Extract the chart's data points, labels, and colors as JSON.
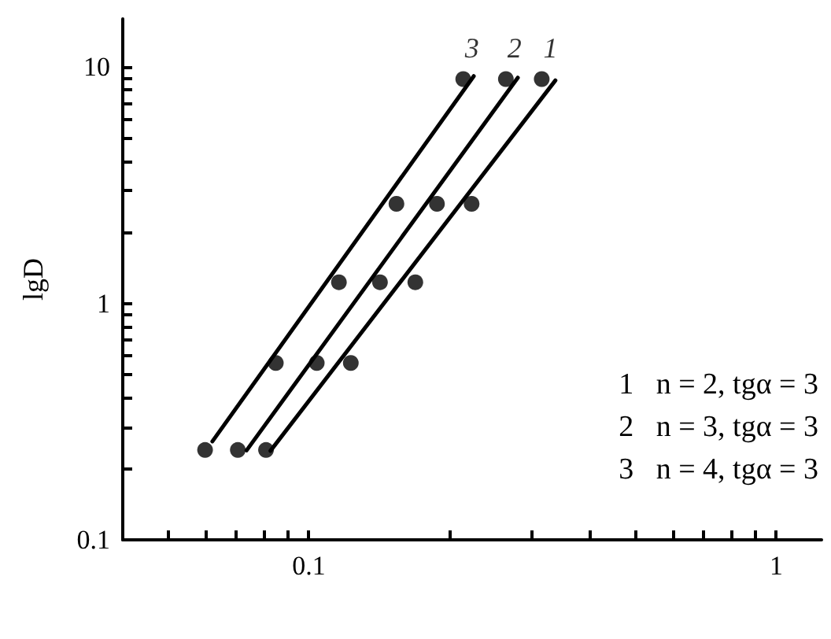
{
  "chart_data": {
    "type": "scatter",
    "ylabel": "lgD",
    "log": "xy",
    "xlim": [
      0.04,
      1.25
    ],
    "ylim": [
      0.1,
      16
    ],
    "xticks": [
      {
        "value": 0.05,
        "label": null
      },
      {
        "value": 0.06,
        "label": null
      },
      {
        "value": 0.07,
        "label": null
      },
      {
        "value": 0.08,
        "label": null
      },
      {
        "value": 0.09,
        "label": null
      },
      0.1,
      {
        "value": 0.2,
        "label": null
      },
      {
        "value": 0.3,
        "label": null
      },
      {
        "value": 0.4,
        "label": null
      },
      {
        "value": 0.5,
        "label": null
      },
      {
        "value": 0.6,
        "label": null
      },
      {
        "value": 0.7,
        "label": null
      },
      {
        "value": 0.8,
        "label": null
      },
      {
        "value": 0.9,
        "label": null
      },
      1
    ],
    "yticks": [
      0.1,
      {
        "value": 0.2,
        "label": null
      },
      {
        "value": 0.3,
        "label": null
      },
      {
        "value": 0.4,
        "label": null
      },
      {
        "value": 0.5,
        "label": null
      },
      {
        "value": 0.6,
        "label": null
      },
      {
        "value": 0.7,
        "label": null
      },
      {
        "value": 0.8,
        "label": null
      },
      {
        "value": 0.9,
        "label": null
      },
      1,
      {
        "value": 2,
        "label": null
      },
      {
        "value": 3,
        "label": null
      },
      {
        "value": 4,
        "label": null
      },
      {
        "value": 5,
        "label": null
      },
      {
        "value": 6,
        "label": null
      },
      {
        "value": 7,
        "label": null
      },
      {
        "value": 8,
        "label": null
      },
      {
        "value": 9,
        "label": null
      },
      10
    ],
    "grid": false,
    "legend": false,
    "marker": "circle",
    "series": [
      {
        "name": "1",
        "color": "#000000",
        "x": [
          0.081,
          0.123,
          0.169,
          0.223,
          0.315
        ],
        "values": [
          0.24,
          0.56,
          1.23,
          2.64,
          8.9
        ]
      },
      {
        "name": "2",
        "color": "#000000",
        "x": [
          0.0705,
          0.104,
          0.142,
          0.188,
          0.264
        ],
        "values": [
          0.24,
          0.56,
          1.23,
          2.64,
          8.9
        ]
      },
      {
        "name": "3",
        "color": "#000000",
        "x": [
          0.06,
          0.085,
          0.116,
          0.154,
          0.214
        ],
        "values": [
          0.24,
          0.56,
          1.23,
          2.64,
          8.9
        ]
      },
      {
        "type": "line",
        "color": "#000000",
        "marker": "none",
        "line_style": "solid",
        "x": [
          0.0828,
          0.337
        ],
        "values": [
          0.238,
          8.79
        ]
      },
      {
        "type": "line",
        "color": "#000000",
        "marker": "none",
        "line_style": "solid",
        "x": [
          0.0736,
          0.28
        ],
        "values": [
          0.239,
          9.02
        ]
      },
      {
        "type": "line",
        "color": "#000000",
        "marker": "none",
        "line_style": "solid",
        "x": [
          0.0622,
          0.2254
        ],
        "values": [
          0.261,
          9.16
        ]
      }
    ],
    "annotations": [
      "1   n = 2, tgα = 3",
      "2   n = 3, tgα = 3",
      "3   n = 4, tgα = 3"
    ]
  }
}
